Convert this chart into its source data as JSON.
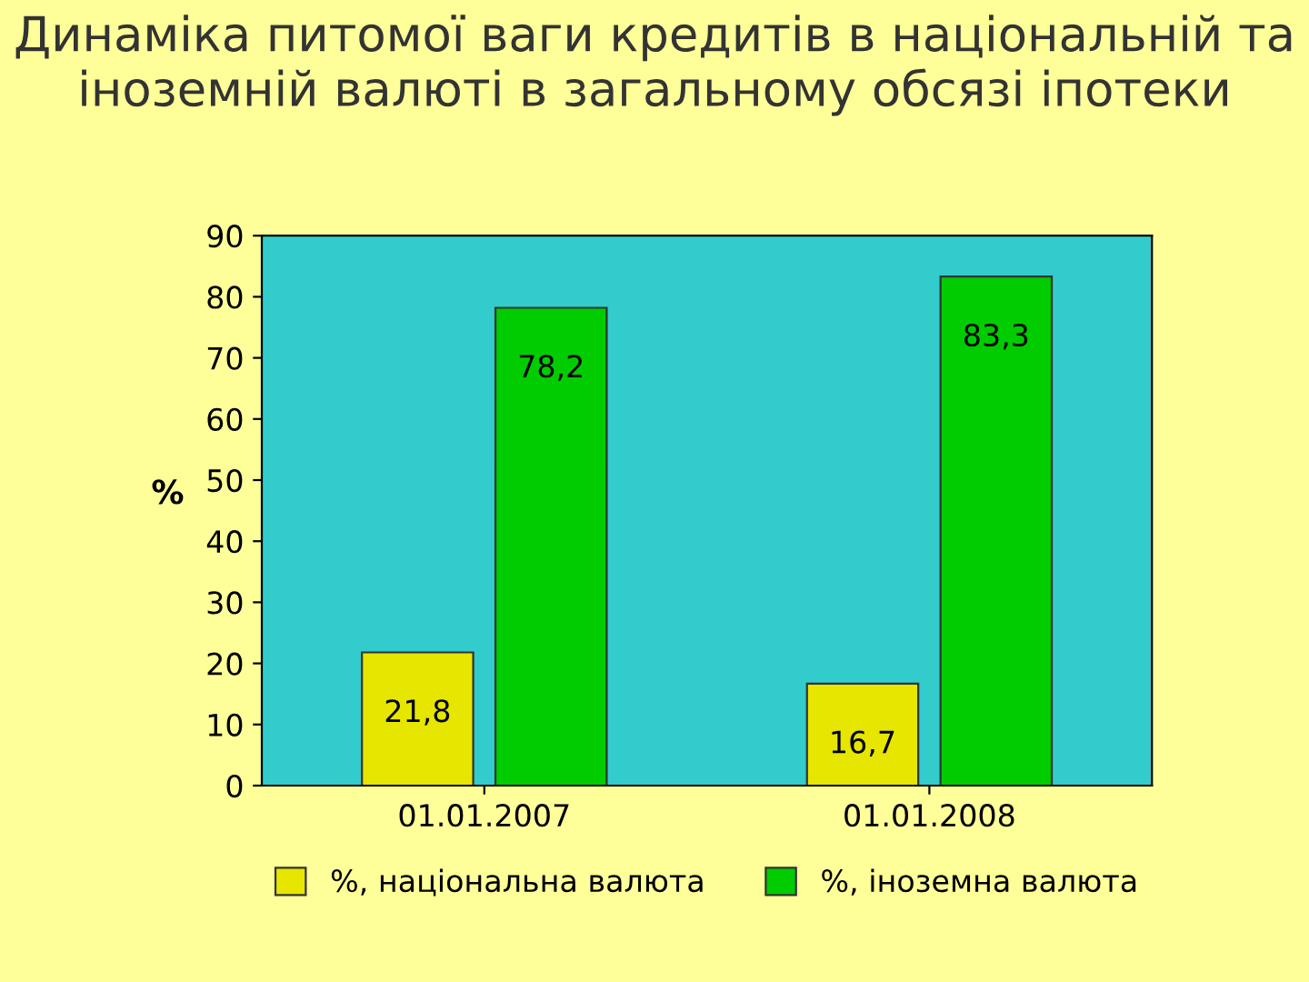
{
  "chart_data": {
    "type": "bar",
    "title": "Динаміка питомої ваги кредитів в національній та іноземній валюті в загальному обсязі іпотеки",
    "ylabel": "%",
    "categories": [
      "01.01.2007",
      "01.01.2008"
    ],
    "series": [
      {
        "name": "%, національна валюта",
        "color": "#e6e600",
        "values": [
          21.8,
          16.7
        ],
        "value_labels": [
          "21,8",
          "16,7"
        ]
      },
      {
        "name": "%, іноземна валюта",
        "color": "#00cc00",
        "values": [
          78.2,
          83.3
        ],
        "value_labels": [
          "78,2",
          "83,3"
        ]
      }
    ],
    "ylim": [
      0,
      90
    ],
    "yticks": [
      0,
      10,
      20,
      30,
      40,
      50,
      60,
      70,
      80,
      90
    ],
    "grid": false,
    "legend": "bottom"
  }
}
